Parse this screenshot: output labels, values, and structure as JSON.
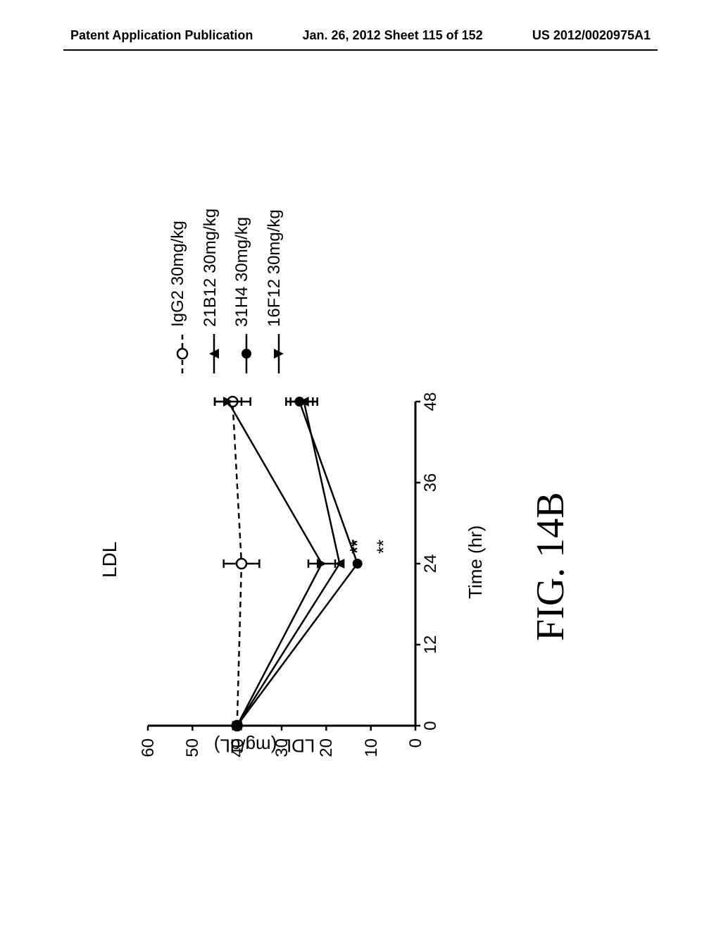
{
  "header": {
    "left": "Patent Application Publication",
    "center": "Jan. 26, 2012  Sheet 115 of 152",
    "right": "US 2012/0020975A1"
  },
  "chart": {
    "title": "LDL",
    "ylabel": "LDL (mg/dL)",
    "xlabel": "Time (hr)",
    "figure_label": "FIG. 14B",
    "xlim": [
      0,
      48
    ],
    "ylim": [
      0,
      60
    ],
    "xticks": [
      0,
      12,
      24,
      36,
      48
    ],
    "yticks": [
      0,
      10,
      20,
      30,
      40,
      50,
      60
    ],
    "series": [
      {
        "id": "igg2",
        "label": "IgG2 30mg/kg",
        "marker": "circle-open",
        "linestyle": "dashed",
        "color": "#000000",
        "data": [
          {
            "x": 0,
            "y": 40,
            "err": 0
          },
          {
            "x": 24,
            "y": 39,
            "err": 4
          },
          {
            "x": 48,
            "y": 41,
            "err": 4
          }
        ]
      },
      {
        "id": "ab21b12",
        "label": "21B12 30mg/kg",
        "marker": "triangle-up-filled",
        "linestyle": "solid",
        "color": "#000000",
        "data": [
          {
            "x": 0,
            "y": 40,
            "err": 0
          },
          {
            "x": 24,
            "y": 17,
            "err": 0,
            "sig": "**"
          },
          {
            "x": 48,
            "y": 25,
            "err": 3,
            "sig": "*"
          }
        ]
      },
      {
        "id": "ab31h4",
        "label": "31H4 30mg/kg",
        "marker": "circle-filled",
        "linestyle": "solid",
        "color": "#000000",
        "data": [
          {
            "x": 0,
            "y": 40,
            "err": 0
          },
          {
            "x": 24,
            "y": 13,
            "err": 0,
            "sig": "**"
          },
          {
            "x": 48,
            "y": 26,
            "err": 3,
            "sig": "*"
          }
        ]
      },
      {
        "id": "ab16f12",
        "label": "16F12 30mg/kg",
        "marker": "triangle-down-filled",
        "linestyle": "solid",
        "color": "#000000",
        "data": [
          {
            "x": 0,
            "y": 40,
            "err": 0
          },
          {
            "x": 24,
            "y": 21,
            "err": 3,
            "sig": "**"
          },
          {
            "x": 48,
            "y": 42,
            "err": 3
          }
        ]
      }
    ]
  }
}
